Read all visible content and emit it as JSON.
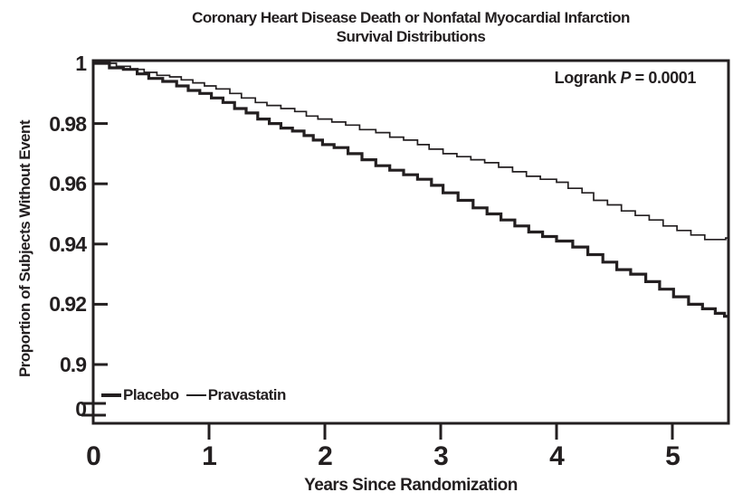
{
  "title_lines": [
    "Coronary Heart Disease Death or Nonfatal Myocardial Infarction",
    "Survival Distributions"
  ],
  "annotation_parts": {
    "prefix": "Logrank ",
    "p": "P",
    "rest": " = 0.0001"
  },
  "colors": {
    "ink": "#231f20",
    "background": "#ffffff"
  },
  "chart_data": {
    "type": "line",
    "subtype": "kaplan-meier-step",
    "title": "Coronary Heart Disease Death or Nonfatal Myocardial Infarction — Survival Distributions",
    "xlabel": "Years Since Randomization",
    "ylabel": "Proportion of Subjects Without Event",
    "annotation": "Logrank P = 0.0001",
    "legend_position": "bottom-left-inside",
    "grid": false,
    "x_range": [
      0,
      5.5
    ],
    "x_ticks": [
      0,
      1,
      2,
      3,
      4,
      5
    ],
    "y_ticks": [
      1,
      0.98,
      0.96,
      0.94,
      0.92,
      0.9
    ],
    "y_zero_label": "0",
    "y_axis_break_to_zero": true,
    "series": [
      {
        "name": "Placebo",
        "style": "thick",
        "stroke_px": 3.2,
        "points": [
          [
            0,
            1.0
          ],
          [
            0.14,
            0.9985
          ],
          [
            0.26,
            0.998
          ],
          [
            0.38,
            0.9965
          ],
          [
            0.48,
            0.995
          ],
          [
            0.6,
            0.994
          ],
          [
            0.72,
            0.9925
          ],
          [
            0.82,
            0.991
          ],
          [
            0.92,
            0.99
          ],
          [
            1.02,
            0.9885
          ],
          [
            1.12,
            0.987
          ],
          [
            1.22,
            0.985
          ],
          [
            1.32,
            0.9835
          ],
          [
            1.42,
            0.9815
          ],
          [
            1.52,
            0.98
          ],
          [
            1.62,
            0.9785
          ],
          [
            1.72,
            0.9775
          ],
          [
            1.82,
            0.976
          ],
          [
            1.9,
            0.9745
          ],
          [
            1.98,
            0.973
          ],
          [
            2.08,
            0.972
          ],
          [
            2.2,
            0.97
          ],
          [
            2.32,
            0.968
          ],
          [
            2.44,
            0.966
          ],
          [
            2.56,
            0.9645
          ],
          [
            2.68,
            0.963
          ],
          [
            2.8,
            0.9615
          ],
          [
            2.92,
            0.9595
          ],
          [
            3.02,
            0.957
          ],
          [
            3.15,
            0.9545
          ],
          [
            3.28,
            0.952
          ],
          [
            3.4,
            0.95
          ],
          [
            3.52,
            0.948
          ],
          [
            3.64,
            0.946
          ],
          [
            3.76,
            0.944
          ],
          [
            3.88,
            0.9425
          ],
          [
            4.0,
            0.941
          ],
          [
            4.14,
            0.939
          ],
          [
            4.27,
            0.9365
          ],
          [
            4.4,
            0.934
          ],
          [
            4.52,
            0.9315
          ],
          [
            4.64,
            0.93
          ],
          [
            4.77,
            0.9275
          ],
          [
            4.89,
            0.925
          ],
          [
            5.01,
            0.9225
          ],
          [
            5.14,
            0.92
          ],
          [
            5.26,
            0.9185
          ],
          [
            5.37,
            0.917
          ],
          [
            5.45,
            0.916
          ]
        ]
      },
      {
        "name": "Pravastatin",
        "style": "thin",
        "stroke_px": 1.7,
        "points": [
          [
            0,
            1.0
          ],
          [
            0.2,
            0.999
          ],
          [
            0.32,
            0.998
          ],
          [
            0.44,
            0.997
          ],
          [
            0.55,
            0.996
          ],
          [
            0.66,
            0.9955
          ],
          [
            0.76,
            0.9945
          ],
          [
            0.86,
            0.9935
          ],
          [
            0.96,
            0.9925
          ],
          [
            1.06,
            0.9915
          ],
          [
            1.18,
            0.99
          ],
          [
            1.28,
            0.9885
          ],
          [
            1.4,
            0.987
          ],
          [
            1.5,
            0.986
          ],
          [
            1.62,
            0.985
          ],
          [
            1.74,
            0.984
          ],
          [
            1.84,
            0.9825
          ],
          [
            1.94,
            0.9815
          ],
          [
            2.06,
            0.9805
          ],
          [
            2.18,
            0.9795
          ],
          [
            2.3,
            0.978
          ],
          [
            2.44,
            0.977
          ],
          [
            2.56,
            0.9755
          ],
          [
            2.68,
            0.9745
          ],
          [
            2.8,
            0.973
          ],
          [
            2.9,
            0.9715
          ],
          [
            3.02,
            0.97
          ],
          [
            3.14,
            0.969
          ],
          [
            3.26,
            0.968
          ],
          [
            3.38,
            0.967
          ],
          [
            3.5,
            0.9655
          ],
          [
            3.62,
            0.964
          ],
          [
            3.74,
            0.9625
          ],
          [
            3.86,
            0.9615
          ],
          [
            4.0,
            0.9605
          ],
          [
            4.1,
            0.9585
          ],
          [
            4.22,
            0.957
          ],
          [
            4.32,
            0.9545
          ],
          [
            4.44,
            0.953
          ],
          [
            4.56,
            0.951
          ],
          [
            4.68,
            0.9495
          ],
          [
            4.8,
            0.948
          ],
          [
            4.92,
            0.946
          ],
          [
            5.04,
            0.9445
          ],
          [
            5.16,
            0.943
          ],
          [
            5.28,
            0.9415
          ],
          [
            5.4,
            0.9415
          ],
          [
            5.46,
            0.942
          ]
        ]
      }
    ]
  }
}
